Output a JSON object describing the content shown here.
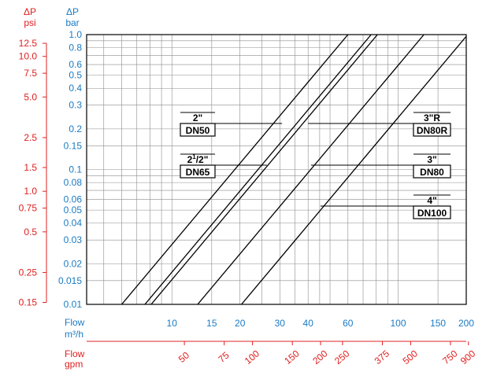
{
  "colors": {
    "psi": "#e02020",
    "bar": "#1a7bc4",
    "grid": "#8c8c8c",
    "curve": "#000000"
  },
  "axis_titles": {
    "psi_top": "ΔP",
    "psi_bottom": "psi",
    "bar_top": "ΔP",
    "bar_bottom": "bar",
    "flow_m3h_top": "Flow",
    "flow_m3h_bottom": "m³/h",
    "flow_gpm_top": "Flow",
    "flow_gpm_bottom": "gpm"
  },
  "chart_data": {
    "type": "line",
    "title": "",
    "xscale": "log",
    "yscale": "log",
    "xlim": [
      4.2,
      200
    ],
    "ylim": [
      0.01,
      1.0
    ],
    "xlabel": "Flow m³/h",
    "ylabel": "ΔP bar",
    "grid": true,
    "bar_ticks": [
      "1.0",
      "0.8",
      "0.6",
      "0.5",
      "0.4",
      "0.3",
      "0.2",
      "0.15",
      "0.1",
      "0.08",
      "0.06",
      "0.05",
      "0.04",
      "0.03",
      "0.02",
      "0.015",
      "0.01"
    ],
    "psi_ticks": [
      "12.5",
      "10.0",
      "7.5",
      "5.0",
      "2.5",
      "1.5",
      "1.0",
      "0.75",
      "0.5",
      "0.25",
      "0.15"
    ],
    "m3h_ticks": [
      "10",
      "15",
      "20",
      "30",
      "40",
      "60",
      "100",
      "150",
      "200"
    ],
    "gpm_ticks": [
      "50",
      "75",
      "100",
      "150",
      "200",
      "250",
      "375",
      "500",
      "750",
      "900"
    ],
    "series": [
      {
        "name": "2\" DN50",
        "values": [
          [
            6.0,
            0.01
          ],
          [
            60,
            1.0
          ]
        ]
      },
      {
        "name": "2 1/2\" DN65",
        "values": [
          [
            7.6,
            0.01
          ],
          [
            76,
            1.0
          ]
        ]
      },
      {
        "name": "3\"R DN80R",
        "values": [
          [
            8.1,
            0.01
          ],
          [
            81,
            1.0
          ]
        ]
      },
      {
        "name": "3\" DN80",
        "values": [
          [
            13.0,
            0.01
          ],
          [
            130,
            1.0
          ]
        ]
      },
      {
        "name": "4\" DN100",
        "values": [
          [
            20.3,
            0.01
          ],
          [
            203,
            1.0
          ]
        ]
      }
    ],
    "tags": [
      {
        "top": "2\"",
        "bottom": "DN50",
        "y": 0.2
      },
      {
        "top": "2",
        "sup": "1",
        "sub": "/2\"",
        "bottom": "DN65",
        "y": 0.1
      },
      {
        "top": "3\"R",
        "bottom": "DN80R",
        "y": 0.2
      },
      {
        "top": "3\"",
        "bottom": "DN80",
        "y": 0.1
      },
      {
        "top": "4\"",
        "bottom": "DN100",
        "y": 0.05
      }
    ]
  }
}
